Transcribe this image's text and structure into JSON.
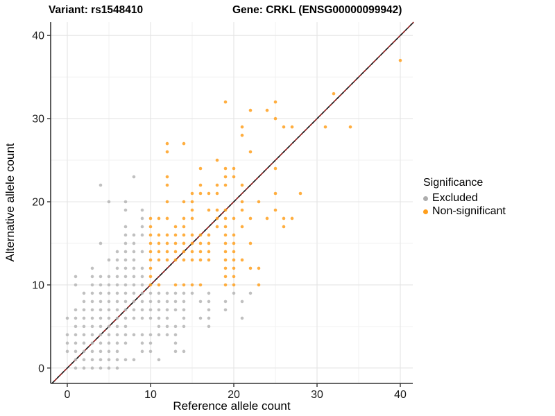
{
  "header": {
    "title_left": "Variant: rs1548410",
    "title_right": "Gene: CRKL (ENSG00000099942)"
  },
  "legend": {
    "title": "Significance",
    "items": [
      {
        "label": "Excluded",
        "color": "#ADADAD"
      },
      {
        "label": "Non-significant",
        "color": "#FF9E1B"
      }
    ]
  },
  "chart_data": {
    "type": "scatter",
    "xlabel": "Reference allele count",
    "ylabel": "Alternative allele count",
    "xlim": [
      -2,
      41.5
    ],
    "ylim": [
      -1.85,
      41.6
    ],
    "x_ticks": [
      0,
      10,
      20,
      30,
      40
    ],
    "y_ticks": [
      0,
      10,
      20,
      30,
      40
    ],
    "x_minor": [
      5,
      15,
      25,
      35
    ],
    "y_minor": [
      5,
      15,
      25,
      35
    ],
    "grid": true,
    "identity_line": {
      "type": "dashed",
      "colors": [
        "#1a1a1a",
        "#8B1A1A"
      ],
      "from": -1.85,
      "to": 41.6
    },
    "point_color_excluded": "#B5B5B5",
    "point_color_nonsig": "#FFA01E",
    "series": [
      {
        "name": "Excluded",
        "color": "#B5B5B5",
        "opacity": 0.85,
        "points": [
          [
            1,
            0
          ],
          [
            2,
            0
          ],
          [
            3,
            0
          ],
          [
            4,
            0
          ],
          [
            5,
            0
          ],
          [
            6,
            0
          ],
          [
            1,
            1
          ],
          [
            2,
            1
          ],
          [
            3,
            1
          ],
          [
            4,
            1
          ],
          [
            5,
            1
          ],
          [
            6,
            1
          ],
          [
            7,
            1
          ],
          [
            8,
            1
          ],
          [
            11,
            1
          ],
          [
            0,
            2
          ],
          [
            1,
            2
          ],
          [
            2,
            2
          ],
          [
            3,
            2
          ],
          [
            4,
            2
          ],
          [
            5,
            2
          ],
          [
            6,
            2
          ],
          [
            9,
            2
          ],
          [
            10,
            2
          ],
          [
            13,
            2
          ],
          [
            14,
            2
          ],
          [
            0,
            3
          ],
          [
            1,
            3
          ],
          [
            2,
            3
          ],
          [
            3,
            3
          ],
          [
            4,
            3
          ],
          [
            5,
            3
          ],
          [
            6,
            3
          ],
          [
            7,
            3
          ],
          [
            9,
            3
          ],
          [
            10,
            3
          ],
          [
            13,
            3
          ],
          [
            0,
            4
          ],
          [
            1,
            4
          ],
          [
            2,
            4
          ],
          [
            3,
            4
          ],
          [
            4,
            4
          ],
          [
            5,
            4
          ],
          [
            6,
            4
          ],
          [
            7,
            4
          ],
          [
            8,
            4
          ],
          [
            9,
            4
          ],
          [
            10,
            4
          ],
          [
            11,
            4
          ],
          [
            12,
            4
          ],
          [
            13,
            4
          ],
          [
            1,
            5
          ],
          [
            2,
            5
          ],
          [
            3,
            5
          ],
          [
            4,
            5
          ],
          [
            5,
            5
          ],
          [
            6,
            5
          ],
          [
            7,
            5
          ],
          [
            11,
            5
          ],
          [
            12,
            5
          ],
          [
            13,
            5
          ],
          [
            14,
            5
          ],
          [
            17,
            5
          ],
          [
            0,
            6
          ],
          [
            1,
            6
          ],
          [
            2,
            6
          ],
          [
            3,
            6
          ],
          [
            4,
            6
          ],
          [
            5,
            6
          ],
          [
            6,
            6
          ],
          [
            7,
            6
          ],
          [
            8,
            6
          ],
          [
            9,
            6
          ],
          [
            10,
            6
          ],
          [
            11,
            6
          ],
          [
            12,
            6
          ],
          [
            14,
            6
          ],
          [
            16,
            6
          ],
          [
            17,
            6
          ],
          [
            21,
            6
          ],
          [
            1,
            7
          ],
          [
            2,
            7
          ],
          [
            3,
            7
          ],
          [
            4,
            7
          ],
          [
            5,
            7
          ],
          [
            6,
            7
          ],
          [
            7,
            7
          ],
          [
            8,
            7
          ],
          [
            9,
            7
          ],
          [
            10,
            7
          ],
          [
            11,
            7
          ],
          [
            12,
            7
          ],
          [
            13,
            7
          ],
          [
            14,
            7
          ],
          [
            17,
            7
          ],
          [
            19,
            7
          ],
          [
            2,
            8
          ],
          [
            3,
            8
          ],
          [
            4,
            8
          ],
          [
            5,
            8
          ],
          [
            6,
            8
          ],
          [
            7,
            8
          ],
          [
            8,
            8
          ],
          [
            9,
            8
          ],
          [
            10,
            8
          ],
          [
            11,
            8
          ],
          [
            12,
            8
          ],
          [
            13,
            8
          ],
          [
            14,
            8
          ],
          [
            16,
            8
          ],
          [
            17,
            8
          ],
          [
            19,
            8
          ],
          [
            21,
            8
          ],
          [
            2,
            9
          ],
          [
            3,
            9
          ],
          [
            4,
            9
          ],
          [
            5,
            9
          ],
          [
            6,
            9
          ],
          [
            7,
            9
          ],
          [
            8,
            9
          ],
          [
            9,
            9
          ],
          [
            10,
            9
          ],
          [
            11,
            9
          ],
          [
            12,
            9
          ],
          [
            13,
            9
          ],
          [
            14,
            9
          ],
          [
            15,
            9
          ],
          [
            17,
            9
          ],
          [
            20,
            9
          ],
          [
            22,
            9
          ],
          [
            1,
            10
          ],
          [
            3,
            10
          ],
          [
            4,
            10
          ],
          [
            5,
            10
          ],
          [
            6,
            10
          ],
          [
            7,
            10
          ],
          [
            8,
            10
          ],
          [
            9,
            10
          ],
          [
            1,
            11
          ],
          [
            3,
            11
          ],
          [
            4,
            11
          ],
          [
            5,
            11
          ],
          [
            6,
            11
          ],
          [
            7,
            11
          ],
          [
            8,
            11
          ],
          [
            9,
            11
          ],
          [
            3,
            12
          ],
          [
            6,
            12
          ],
          [
            7,
            12
          ],
          [
            8,
            12
          ],
          [
            9,
            12
          ],
          [
            5,
            13
          ],
          [
            6,
            13
          ],
          [
            7,
            13
          ],
          [
            8,
            13
          ],
          [
            6,
            14
          ],
          [
            7,
            14
          ],
          [
            8,
            14
          ],
          [
            9,
            14
          ],
          [
            4,
            15
          ],
          [
            7,
            15
          ],
          [
            8,
            15
          ],
          [
            7,
            16
          ],
          [
            8,
            16
          ],
          [
            9,
            16
          ],
          [
            7,
            17
          ],
          [
            9,
            17
          ],
          [
            9,
            18
          ],
          [
            7,
            19
          ],
          [
            9,
            19
          ],
          [
            5,
            20
          ],
          [
            7,
            20
          ],
          [
            4,
            22
          ],
          [
            8,
            23
          ]
        ]
      },
      {
        "name": "Non-significant",
        "color": "#FFA01E",
        "opacity": 0.85,
        "points": [
          [
            10,
            10
          ],
          [
            11,
            10
          ],
          [
            13,
            10
          ],
          [
            14,
            10
          ],
          [
            15,
            10
          ],
          [
            16,
            10
          ],
          [
            19,
            10
          ],
          [
            20,
            10
          ],
          [
            23,
            10
          ],
          [
            10,
            11
          ],
          [
            19,
            11
          ],
          [
            20,
            11
          ],
          [
            10,
            12
          ],
          [
            19,
            12
          ],
          [
            20,
            12
          ],
          [
            22,
            12
          ],
          [
            23,
            12
          ],
          [
            10,
            13
          ],
          [
            11,
            13
          ],
          [
            12,
            13
          ],
          [
            13,
            13
          ],
          [
            14,
            13
          ],
          [
            15,
            13
          ],
          [
            16,
            13
          ],
          [
            17,
            13
          ],
          [
            19,
            13
          ],
          [
            20,
            13
          ],
          [
            21,
            13
          ],
          [
            10,
            14
          ],
          [
            11,
            14
          ],
          [
            12,
            14
          ],
          [
            13,
            14
          ],
          [
            14,
            14
          ],
          [
            15,
            14
          ],
          [
            16,
            14
          ],
          [
            17,
            14
          ],
          [
            19,
            14
          ],
          [
            20,
            14
          ],
          [
            10,
            15
          ],
          [
            11,
            15
          ],
          [
            12,
            15
          ],
          [
            13,
            15
          ],
          [
            14,
            15
          ],
          [
            15,
            15
          ],
          [
            16,
            15
          ],
          [
            17,
            15
          ],
          [
            19,
            15
          ],
          [
            20,
            15
          ],
          [
            22,
            15
          ],
          [
            10,
            16
          ],
          [
            11,
            16
          ],
          [
            12,
            16
          ],
          [
            13,
            16
          ],
          [
            14,
            16
          ],
          [
            15,
            16
          ],
          [
            16,
            16
          ],
          [
            17,
            16
          ],
          [
            19,
            16
          ],
          [
            20,
            16
          ],
          [
            10,
            17
          ],
          [
            13,
            17
          ],
          [
            14,
            17
          ],
          [
            18,
            17
          ],
          [
            19,
            17
          ],
          [
            21,
            17
          ],
          [
            26,
            17
          ],
          [
            10,
            18
          ],
          [
            11,
            18
          ],
          [
            12,
            18
          ],
          [
            14,
            18
          ],
          [
            15,
            18
          ],
          [
            18,
            18
          ],
          [
            19,
            18
          ],
          [
            20,
            18
          ],
          [
            22,
            18
          ],
          [
            24,
            18
          ],
          [
            26,
            18
          ],
          [
            27,
            18
          ],
          [
            15,
            19
          ],
          [
            17,
            19
          ],
          [
            18,
            19
          ],
          [
            19,
            19
          ],
          [
            21,
            19
          ],
          [
            25,
            19
          ],
          [
            12,
            20
          ],
          [
            14,
            20
          ],
          [
            15,
            20
          ],
          [
            21,
            20
          ],
          [
            23,
            20
          ],
          [
            15,
            21
          ],
          [
            16,
            21
          ],
          [
            17,
            21
          ],
          [
            18,
            21
          ],
          [
            25,
            21
          ],
          [
            28,
            21
          ],
          [
            12,
            22
          ],
          [
            16,
            22
          ],
          [
            18,
            22
          ],
          [
            19,
            22
          ],
          [
            21,
            22
          ],
          [
            12,
            23
          ],
          [
            19,
            23
          ],
          [
            20,
            23
          ],
          [
            16,
            24
          ],
          [
            19,
            24
          ],
          [
            20,
            24
          ],
          [
            25,
            24
          ],
          [
            18,
            25
          ],
          [
            12,
            26
          ],
          [
            22,
            26
          ],
          [
            12,
            27
          ],
          [
            14,
            27
          ],
          [
            21,
            28
          ],
          [
            21,
            29
          ],
          [
            26,
            29
          ],
          [
            27,
            29
          ],
          [
            31,
            29
          ],
          [
            34,
            29
          ],
          [
            25,
            30
          ],
          [
            22,
            31
          ],
          [
            24,
            31
          ],
          [
            19,
            32
          ],
          [
            25,
            32
          ],
          [
            32,
            33
          ],
          [
            40,
            37
          ]
        ]
      }
    ]
  }
}
